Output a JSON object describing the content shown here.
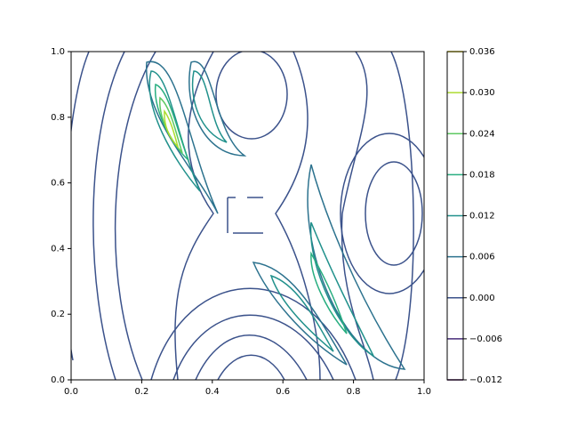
{
  "chart_data": {
    "type": "contour",
    "xlim": [
      0,
      1
    ],
    "ylim": [
      0,
      1
    ],
    "xticks": [
      {
        "value": 0,
        "label": "0.0"
      },
      {
        "value": 0.2,
        "label": "0.2"
      },
      {
        "value": 0.4,
        "label": "0.4"
      },
      {
        "value": 0.6,
        "label": "0.6"
      },
      {
        "value": 0.8,
        "label": "0.8"
      },
      {
        "value": 1,
        "label": "1.0"
      }
    ],
    "yticks": [
      {
        "value": 0,
        "label": "0.0"
      },
      {
        "value": 0.2,
        "label": "0.2"
      },
      {
        "value": 0.4,
        "label": "0.4"
      },
      {
        "value": 0.6,
        "label": "0.6"
      },
      {
        "value": 0.8,
        "label": "0.8"
      },
      {
        "value": 1,
        "label": "1.0"
      }
    ],
    "levels": [
      {
        "value": -0.012,
        "label": "−0.012"
      },
      {
        "value": -0.006,
        "label": "−0.006"
      },
      {
        "value": 0,
        "label": "0.000"
      },
      {
        "value": 0.006,
        "label": "0.006"
      },
      {
        "value": 0.012,
        "label": "0.012"
      },
      {
        "value": 0.018,
        "label": "0.018"
      },
      {
        "value": 0.024,
        "label": "0.024"
      },
      {
        "value": 0.03,
        "label": "0.030"
      },
      {
        "value": 0.036,
        "label": "0.036"
      }
    ],
    "colors": [
      "#440154",
      "#472c7a",
      "#3b528b",
      "#2c728e",
      "#21918c",
      "#28ae80",
      "#5ec962",
      "#addc30",
      "#fde725"
    ]
  }
}
